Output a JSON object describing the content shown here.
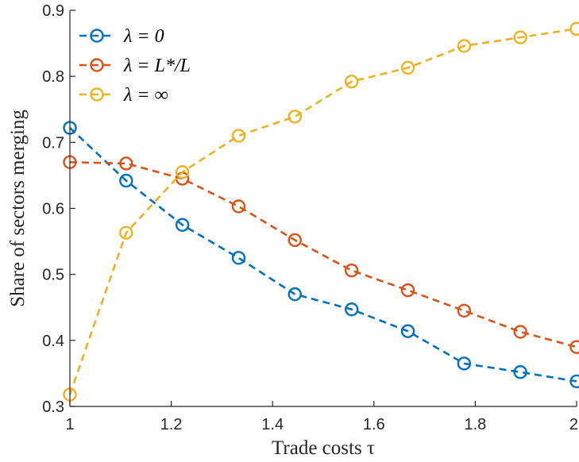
{
  "chart_data": {
    "type": "line",
    "title": "",
    "xlabel": "Trade costs τ",
    "ylabel": "Share of sectors merging",
    "xlim": [
      1,
      2
    ],
    "ylim": [
      0.3,
      0.9
    ],
    "xticks": [
      1,
      1.2,
      1.4,
      1.6,
      1.8,
      2
    ],
    "xtick_labels": [
      "1",
      "1.2",
      "1.4",
      "1.6",
      "1.8",
      "2"
    ],
    "yticks": [
      0.3,
      0.4,
      0.5,
      0.6,
      0.7,
      0.8,
      0.9
    ],
    "ytick_labels": [
      "0.3",
      "0.4",
      "0.5",
      "0.6",
      "0.7",
      "0.8",
      "0.9"
    ],
    "grid": false,
    "legend_position": "top-left",
    "x": [
      1.0,
      1.111,
      1.222,
      1.333,
      1.444,
      1.556,
      1.667,
      1.778,
      1.889,
      2.0
    ],
    "series": [
      {
        "name": "λ = 0",
        "color": "#0072BD",
        "values": [
          0.722,
          0.642,
          0.575,
          0.525,
          0.47,
          0.447,
          0.414,
          0.365,
          0.352,
          0.338
        ]
      },
      {
        "name": "λ = L*/L",
        "color": "#D95319",
        "values": [
          0.67,
          0.668,
          0.645,
          0.603,
          0.552,
          0.506,
          0.476,
          0.445,
          0.413,
          0.39
        ]
      },
      {
        "name": "λ = ∞",
        "color": "#EDB120",
        "values": [
          0.318,
          0.563,
          0.655,
          0.71,
          0.739,
          0.792,
          0.813,
          0.846,
          0.859,
          0.872
        ]
      }
    ]
  }
}
